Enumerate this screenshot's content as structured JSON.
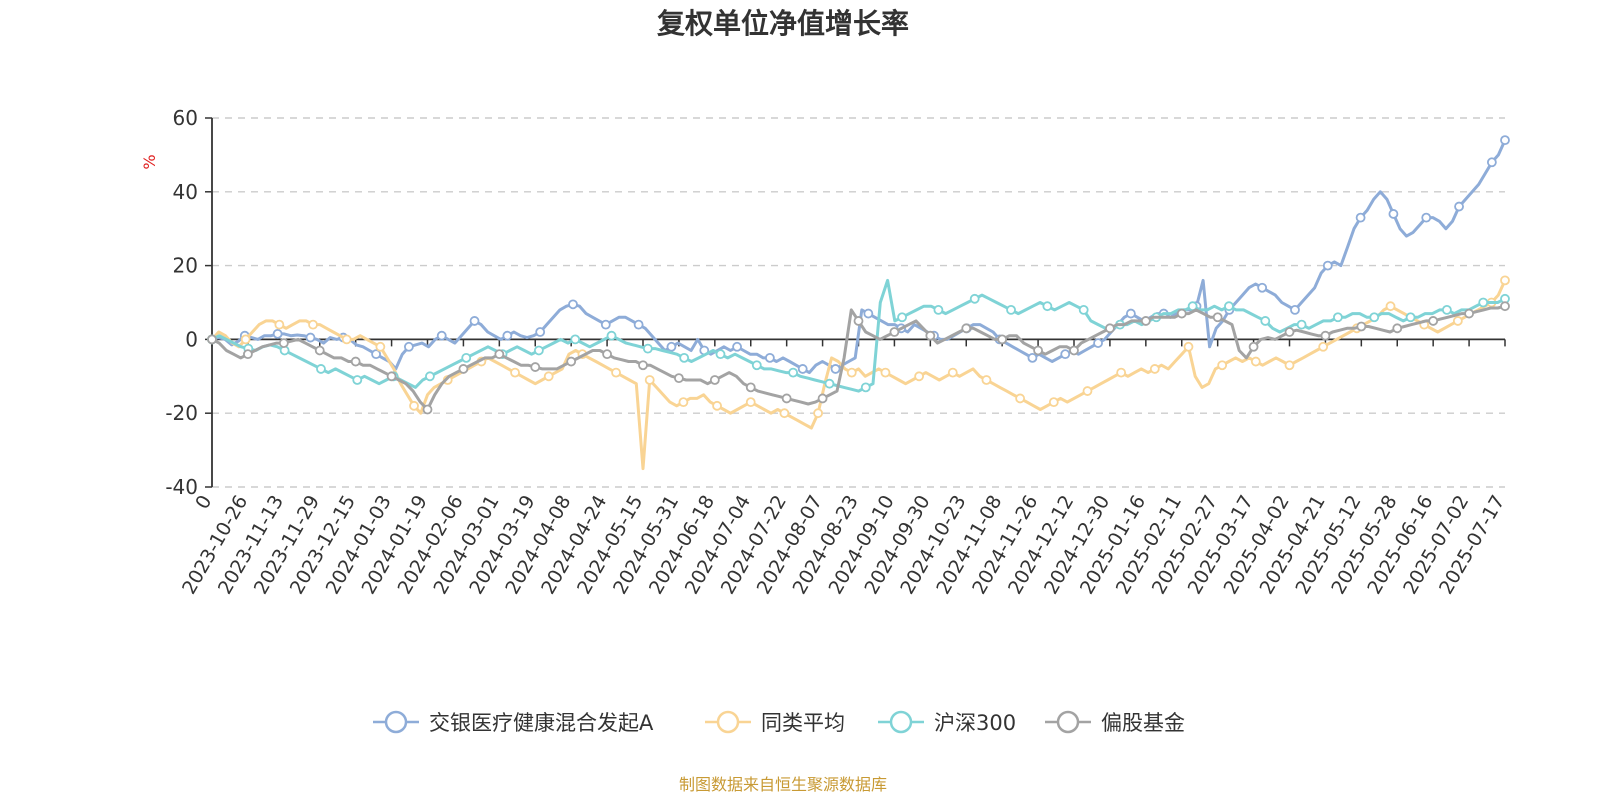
{
  "chart_data": {
    "type": "line",
    "title": "复权单位净值增长率",
    "ylabel": "%",
    "ylim": [
      -40,
      60
    ],
    "yticks": [
      60,
      40,
      20,
      0,
      -20,
      -40
    ],
    "grid": true,
    "legend_position": "bottom-center",
    "xtick_labels": [
      "0",
      "2023-10-26",
      "2023-11-13",
      "2023-11-29",
      "2023-12-15",
      "2024-01-03",
      "2024-01-19",
      "2024-02-06",
      "2024-03-01",
      "2024-03-19",
      "2024-04-08",
      "2024-04-24",
      "2024-05-15",
      "2024-05-31",
      "2024-06-18",
      "2024-07-04",
      "2024-07-22",
      "2024-08-07",
      "2024-08-23",
      "2024-09-10",
      "2024-09-30",
      "2024-10-23",
      "2024-11-08",
      "2024-11-26",
      "2024-12-12",
      "2024-12-30",
      "2025-01-16",
      "2025-02-11",
      "2025-02-27",
      "2025-03-17",
      "2025-04-02",
      "2025-04-21",
      "2025-05-12",
      "2025-05-28",
      "2025-06-16",
      "2025-07-02",
      "2025-07-17"
    ],
    "series": [
      {
        "name": "交银医疗健康混合发起A",
        "color": "#8eacd8",
        "values": [
          0,
          0.5,
          0,
          -1.5,
          -0.5,
          1,
          0.5,
          0,
          1,
          1,
          1.5,
          1.5,
          1,
          1.2,
          1,
          0.5,
          0,
          -1,
          0.5,
          0,
          0.5,
          0,
          -1.5,
          -2,
          -3,
          -4,
          -5,
          -6,
          -8,
          -4,
          -2,
          -1.5,
          -1,
          -2,
          0,
          1,
          0,
          -1,
          1,
          3,
          5,
          4,
          2,
          1,
          0,
          1,
          2,
          1,
          0.5,
          1,
          2,
          4,
          6,
          8,
          9,
          9.5,
          9,
          7,
          6,
          5,
          4,
          5,
          6,
          6,
          5,
          4,
          3,
          1,
          -1,
          -3,
          -2,
          -1,
          -2,
          -3,
          0,
          -3,
          -4,
          -3,
          -2,
          -3,
          -2,
          -3,
          -4,
          -4,
          -5,
          -5,
          -6,
          -5,
          -6,
          -7,
          -8,
          -9,
          -7,
          -6,
          -7,
          -8,
          -7,
          -6,
          -5,
          8,
          7,
          6,
          5,
          4,
          4,
          3,
          2,
          4,
          3,
          2,
          1,
          0,
          0,
          1,
          2,
          3,
          4,
          4,
          3,
          2,
          0,
          -1,
          -2,
          -3,
          -4,
          -5,
          -4,
          -5,
          -6,
          -5,
          -4,
          -3,
          -4,
          -3,
          -2,
          -1,
          0,
          2,
          4,
          6,
          7,
          6,
          5,
          6,
          7,
          7,
          6,
          7,
          8,
          8,
          9,
          16,
          -2,
          3,
          5,
          8,
          10,
          12,
          14,
          15,
          14,
          13,
          12,
          10,
          9,
          8,
          10,
          12,
          14,
          18,
          20,
          21,
          20,
          25,
          30,
          33,
          35,
          38,
          40,
          38,
          34,
          30,
          28,
          29,
          31,
          33,
          33,
          32,
          30,
          32,
          36,
          38,
          40,
          42,
          45,
          48,
          50,
          54
        ]
      },
      {
        "name": "同类平均",
        "color": "#f9d494",
        "values": [
          0,
          2,
          1,
          -1,
          -2,
          0,
          2,
          4,
          5,
          5,
          4,
          3,
          4,
          5,
          5,
          4,
          4,
          3,
          2,
          1,
          0,
          0,
          1,
          0,
          -1,
          -2,
          -5,
          -8,
          -12,
          -15,
          -18,
          -20,
          -15,
          -13,
          -12,
          -11,
          -10,
          -9,
          -8,
          -7,
          -6,
          -5,
          -6,
          -7,
          -8,
          -9,
          -10,
          -11,
          -12,
          -11,
          -10,
          -9,
          -8,
          -4,
          -3,
          -4,
          -5,
          -6,
          -7,
          -8,
          -9,
          -10,
          -11,
          -12,
          -35,
          -11,
          -13,
          -15,
          -17,
          -18,
          -17,
          -16,
          -16,
          -15,
          -17,
          -18,
          -19,
          -20,
          -19,
          -18,
          -17,
          -18,
          -19,
          -20,
          -19,
          -20,
          -21,
          -22,
          -23,
          -24,
          -20,
          -12,
          -5,
          -6,
          -8,
          -9,
          -8,
          -10,
          -9,
          -8,
          -9,
          -10,
          -11,
          -12,
          -11,
          -10,
          -9,
          -10,
          -11,
          -10,
          -9,
          -10,
          -9,
          -8,
          -10,
          -11,
          -12,
          -13,
          -14,
          -15,
          -16,
          -17,
          -18,
          -19,
          -18,
          -17,
          -16,
          -17,
          -16,
          -15,
          -14,
          -13,
          -12,
          -11,
          -10,
          -9,
          -10,
          -9,
          -8,
          -9,
          -8,
          -7,
          -8,
          -6,
          -4,
          -2,
          -10,
          -13,
          -12,
          -8,
          -7,
          -6,
          -5,
          -6,
          -5,
          -6,
          -7,
          -6,
          -5,
          -6,
          -7,
          -6,
          -5,
          -4,
          -3,
          -2,
          -1,
          0,
          1,
          2,
          3,
          4,
          5,
          6,
          8,
          9,
          8,
          7,
          6,
          5,
          4,
          3,
          2,
          3,
          4,
          5,
          6,
          7,
          8,
          9,
          10,
          12,
          16
        ]
      },
      {
        "name": "沪深300",
        "color": "#7fd3d6",
        "values": [
          0,
          1,
          0,
          -1,
          -2,
          -2.5,
          -3,
          -2,
          -1.5,
          -2,
          -3,
          -4,
          -5,
          -6,
          -7,
          -8,
          -9,
          -8,
          -9,
          -10,
          -11,
          -10,
          -11,
          -12,
          -11,
          -10,
          -11,
          -12,
          -13,
          -11,
          -10,
          -9,
          -8,
          -7,
          -6,
          -5,
          -4,
          -3,
          -2,
          -3,
          -4,
          -3,
          -2,
          -3,
          -4,
          -3,
          -2,
          -1,
          0,
          -1,
          0,
          -1,
          -2,
          -1,
          0,
          1,
          0,
          -1,
          -1.5,
          -2,
          -2.5,
          -2.5,
          -3,
          -3.5,
          -4,
          -5,
          -6,
          -5,
          -4,
          -3,
          -4,
          -5,
          -4,
          -5,
          -6,
          -7,
          -8,
          -8,
          -8.5,
          -9,
          -9,
          -10,
          -10.5,
          -11,
          -11.5,
          -12,
          -12.5,
          -13,
          -13.5,
          -14,
          -13,
          -12,
          10,
          16,
          5,
          6,
          7,
          8,
          9,
          9,
          8,
          7,
          8,
          9,
          10,
          11,
          12,
          11,
          10,
          9,
          8,
          7,
          8,
          9,
          10,
          9,
          8,
          9,
          10,
          9,
          8,
          5,
          4,
          3,
          3,
          4,
          4,
          5,
          4,
          5,
          6,
          7,
          7,
          8,
          8,
          9,
          8,
          8,
          9,
          8,
          9,
          8,
          8,
          7,
          6,
          5,
          3,
          2,
          3,
          4,
          4,
          3,
          4,
          5,
          5,
          6,
          6,
          7,
          7,
          6,
          6,
          7,
          7,
          6,
          5,
          6,
          6,
          7,
          7,
          8,
          8,
          7,
          8,
          8,
          9,
          10,
          10,
          10,
          11
        ]
      },
      {
        "name": "偏股基金",
        "color": "#a3a3a3",
        "values": [
          0,
          -1,
          -3,
          -4,
          -5,
          -4,
          -3,
          -2,
          -1.5,
          -1,
          -1,
          -0.5,
          0,
          -1,
          -2,
          -3,
          -4,
          -5,
          -5,
          -6,
          -6,
          -7,
          -7,
          -8,
          -9,
          -10,
          -11,
          -12,
          -14,
          -17,
          -19,
          -15,
          -12,
          -10,
          -9,
          -8,
          -7,
          -6,
          -5,
          -5,
          -4,
          -5,
          -6,
          -7,
          -7,
          -7.5,
          -8,
          -8,
          -8,
          -7,
          -6,
          -5,
          -4,
          -3,
          -3,
          -4,
          -5,
          -5.5,
          -6,
          -6,
          -7,
          -7,
          -8,
          -9,
          -10,
          -10.5,
          -11,
          -11,
          -11,
          -12,
          -11,
          -10,
          -9,
          -10,
          -12,
          -13,
          -14,
          -14.5,
          -15,
          -15.5,
          -16,
          -16.5,
          -17,
          -17.5,
          -17,
          -16,
          -15,
          -14,
          -5,
          8,
          5,
          2,
          1,
          0,
          1,
          2,
          3,
          4,
          5,
          3,
          1,
          -1,
          0,
          1,
          2,
          3,
          3,
          2,
          1,
          0,
          0,
          1,
          1,
          -1,
          -2,
          -3,
          -4,
          -3,
          -2,
          -2,
          -3,
          -1,
          0,
          1,
          2,
          3,
          4,
          4,
          5,
          5,
          5,
          6,
          6,
          6,
          6,
          7,
          7,
          8,
          7,
          6,
          6,
          5,
          4,
          -3,
          -5,
          -2,
          0,
          0.5,
          0,
          1,
          2,
          2.5,
          2,
          1.5,
          1,
          1,
          2,
          2.5,
          3,
          3,
          3.5,
          3.5,
          3,
          2.5,
          2,
          3,
          3.5,
          4,
          4.5,
          5,
          5,
          5.5,
          6,
          6.5,
          7,
          7,
          7.5,
          8,
          8.5,
          8.5,
          9
        ]
      }
    ]
  },
  "source_note": "制图数据来自恒生聚源数据库"
}
